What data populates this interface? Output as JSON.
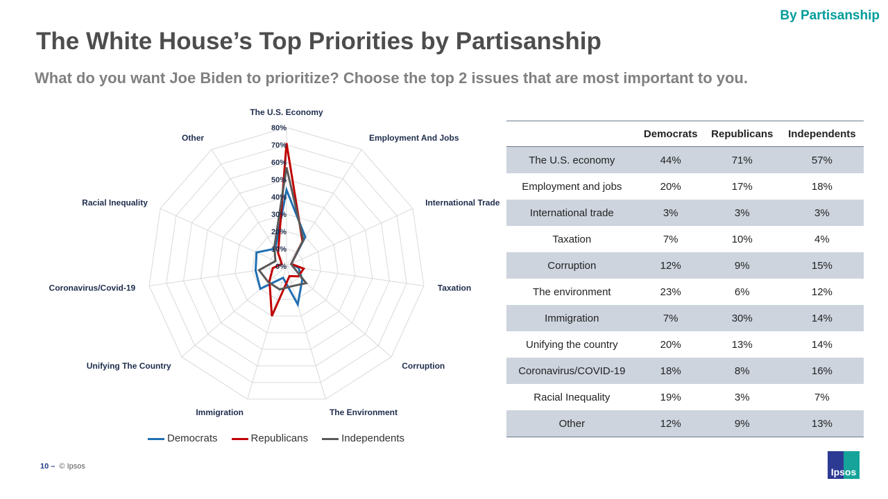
{
  "header": {
    "tag": "By Partisanship",
    "title": "The White House’s Top Priorities by Partisanship",
    "subtitle": "What do you want Joe Biden to prioritize? Choose the top 2 issues that are most important to you."
  },
  "chart_data": {
    "type": "radar",
    "categories": [
      "The U.S. Economy",
      "Employment And Jobs",
      "International Trade",
      "Taxation",
      "Corruption",
      "The Environment",
      "Immigration",
      "Unifying The Country",
      "Coronavirus/Covid-19",
      "Racial Inequality",
      "Other"
    ],
    "series": [
      {
        "name": "Democrats",
        "color": "#1f6fb2",
        "values": [
          44,
          20,
          3,
          7,
          12,
          23,
          7,
          20,
          18,
          19,
          12
        ]
      },
      {
        "name": "Republicans",
        "color": "#c00000",
        "values": [
          71,
          17,
          3,
          10,
          9,
          6,
          30,
          13,
          8,
          3,
          9
        ]
      },
      {
        "name": "Independents",
        "color": "#595959",
        "values": [
          57,
          18,
          3,
          4,
          15,
          12,
          14,
          14,
          16,
          7,
          13
        ]
      }
    ],
    "ticks": [
      "0%",
      "10%",
      "20%",
      "30%",
      "40%",
      "50%",
      "60%",
      "70%",
      "80%"
    ],
    "rlim": [
      0,
      80
    ],
    "grid": true,
    "legend": "bottom"
  },
  "table": {
    "headers": [
      "",
      "Democrats",
      "Republicans",
      "Independents"
    ],
    "rows": [
      [
        "The U.S. economy",
        "44%",
        "71%",
        "57%"
      ],
      [
        "Employment and jobs",
        "20%",
        "17%",
        "18%"
      ],
      [
        "International trade",
        "3%",
        "3%",
        "3%"
      ],
      [
        "Taxation",
        "7%",
        "10%",
        "4%"
      ],
      [
        "Corruption",
        "12%",
        "9%",
        "15%"
      ],
      [
        "The environment",
        "23%",
        "6%",
        "12%"
      ],
      [
        "Immigration",
        "7%",
        "30%",
        "14%"
      ],
      [
        "Unifying the country",
        "20%",
        "13%",
        "14%"
      ],
      [
        "Coronavirus/COVID-19",
        "18%",
        "8%",
        "16%"
      ],
      [
        "Racial Inequality",
        "19%",
        "3%",
        "7%"
      ],
      [
        "Other",
        "12%",
        "9%",
        "13%"
      ]
    ]
  },
  "footer": {
    "page": "10 –",
    "copyright": "© Ipsos",
    "logo": "Ipsos"
  }
}
